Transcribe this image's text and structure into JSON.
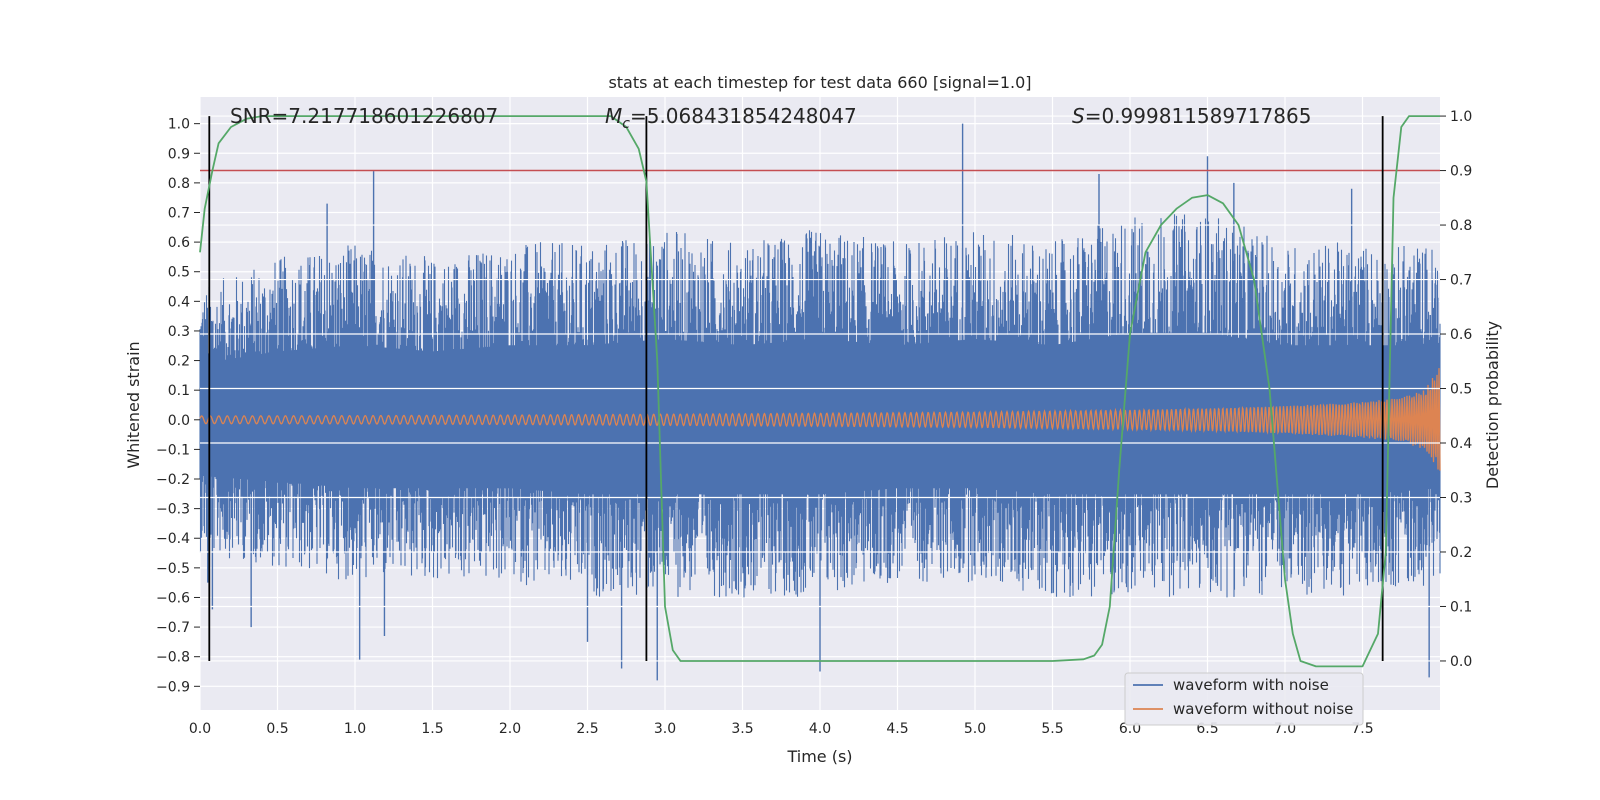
{
  "chart_data": {
    "type": "line",
    "title": "stats at each timestep for test data 660 [signal=1.0]",
    "xlabel": "Time (s)",
    "ylabel": "Whitened strain",
    "y2label": "Detection probability",
    "xlim": [
      0.0,
      8.0
    ],
    "ylim": [
      -0.98,
      1.09
    ],
    "y2lim": [
      -0.09,
      1.035
    ],
    "xticks": [
      "0.0",
      "0.5",
      "1.0",
      "1.5",
      "2.0",
      "2.5",
      "3.0",
      "3.5",
      "4.0",
      "4.5",
      "5.0",
      "5.5",
      "6.0",
      "6.5",
      "7.0",
      "7.5"
    ],
    "yticks": [
      "1.0",
      "0.9",
      "0.8",
      "0.7",
      "0.6",
      "0.5",
      "0.4",
      "0.3",
      "0.2",
      "0.1",
      "0.0",
      "-0.1",
      "-0.2",
      "-0.3",
      "-0.4",
      "-0.5",
      "-0.6",
      "-0.7",
      "-0.8",
      "-0.9"
    ],
    "y2ticks": [
      "1.0",
      "0.9",
      "0.8",
      "0.7",
      "0.6",
      "0.5",
      "0.4",
      "0.3",
      "0.2",
      "0.1",
      "0.0"
    ],
    "grid": true,
    "legend_position": "bottom-right",
    "annotations": {
      "snr": "SNR=7.217718601226807",
      "mc_symbol": "M",
      "mc_sub": "c",
      "mc_value": "=5.068431854248047",
      "s_symbol": "S",
      "s_value": "=0.999811589717865"
    },
    "threshold_y2": 0.9,
    "vertical_markers_x": [
      0.06,
      2.88,
      7.63
    ],
    "noisy_envelope": {
      "description_values": "approximate positive and negative peak envelope of the noisy waveform",
      "x": [
        0.0,
        0.5,
        1.0,
        1.5,
        2.0,
        2.5,
        3.0,
        3.5,
        4.0,
        4.5,
        5.0,
        5.5,
        6.0,
        6.5,
        7.0,
        7.5,
        8.0
      ],
      "upper": [
        0.45,
        0.55,
        0.6,
        0.55,
        0.6,
        0.6,
        0.65,
        0.6,
        0.65,
        0.6,
        0.65,
        0.6,
        0.7,
        0.7,
        0.6,
        0.6,
        0.6
      ],
      "lower": [
        -0.45,
        -0.5,
        -0.55,
        -0.55,
        -0.55,
        -0.6,
        -0.6,
        -0.6,
        -0.6,
        -0.55,
        -0.55,
        -0.6,
        -0.6,
        -0.6,
        -0.6,
        -0.6,
        -0.55
      ],
      "peaks": [
        [
          0.05,
          -0.55
        ],
        [
          0.08,
          -0.64
        ],
        [
          0.33,
          -0.7
        ],
        [
          0.82,
          0.73
        ],
        [
          1.03,
          -0.81
        ],
        [
          1.12,
          0.84
        ],
        [
          1.19,
          -0.73
        ],
        [
          2.5,
          -0.75
        ],
        [
          2.72,
          -0.84
        ],
        [
          2.95,
          -0.88
        ],
        [
          4.0,
          -0.85
        ],
        [
          4.92,
          1.0
        ],
        [
          5.8,
          0.83
        ],
        [
          6.5,
          0.89
        ],
        [
          6.67,
          0.8
        ],
        [
          7.43,
          0.78
        ],
        [
          7.93,
          -0.87
        ]
      ]
    },
    "clean_envelope": {
      "x": [
        0.0,
        1.0,
        2.0,
        3.0,
        4.0,
        5.0,
        6.0,
        6.5,
        7.0,
        7.5,
        7.75,
        7.9,
        8.0
      ],
      "amplitude": [
        0.013,
        0.014,
        0.016,
        0.019,
        0.022,
        0.026,
        0.033,
        0.038,
        0.046,
        0.06,
        0.075,
        0.1,
        0.18
      ]
    },
    "series": [
      {
        "name": "waveform with noise",
        "color": "#4c72b0"
      },
      {
        "name": "waveform without noise",
        "color": "#dd8452"
      },
      {
        "color": "#55a868",
        "axis": "y2",
        "x": [
          0.0,
          0.03,
          0.08,
          0.12,
          0.2,
          0.3,
          0.4,
          0.5,
          1.0,
          2.0,
          2.5,
          2.65,
          2.75,
          2.83,
          2.88,
          2.95,
          3.0,
          3.05,
          3.1,
          3.2,
          3.5,
          4.5,
          5.0,
          5.5,
          5.7,
          5.77,
          5.82,
          5.87,
          5.93,
          6.0,
          6.1,
          6.2,
          6.3,
          6.4,
          6.5,
          6.6,
          6.7,
          6.8,
          6.9,
          7.0,
          7.05,
          7.1,
          7.2,
          7.3,
          7.4,
          7.5,
          7.6,
          7.65,
          7.7,
          7.75,
          7.8,
          8.0
        ],
        "y": [
          0.75,
          0.83,
          0.9,
          0.95,
          0.98,
          0.995,
          1.0,
          1.0,
          1.0,
          1.0,
          1.0,
          1.0,
          0.98,
          0.94,
          0.88,
          0.55,
          0.1,
          0.02,
          0.0,
          0.0,
          0.0,
          0.0,
          0.0,
          0.0,
          0.003,
          0.01,
          0.03,
          0.1,
          0.35,
          0.6,
          0.75,
          0.8,
          0.83,
          0.85,
          0.855,
          0.84,
          0.8,
          0.7,
          0.5,
          0.15,
          0.05,
          0.0,
          -0.01,
          -0.01,
          -0.01,
          -0.01,
          0.05,
          0.2,
          0.85,
          0.98,
          1.0,
          1.0
        ]
      }
    ]
  }
}
